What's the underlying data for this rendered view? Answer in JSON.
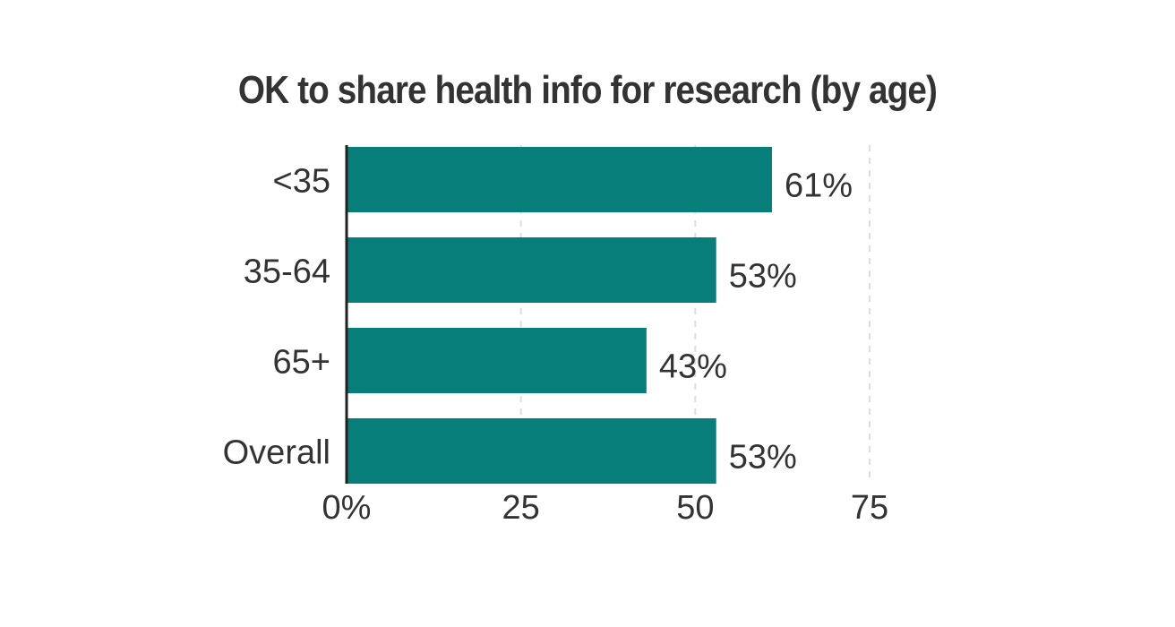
{
  "chart_data": {
    "type": "bar",
    "orientation": "horizontal",
    "title": "OK to share health info for research (by age)",
    "categories": [
      "<35",
      "35-64",
      "65+",
      "Overall"
    ],
    "values": [
      61,
      53,
      43,
      53
    ],
    "value_labels": [
      "61%",
      "53%",
      "43%",
      "53%"
    ],
    "xlim": [
      0,
      75
    ],
    "xticks": [
      0,
      25,
      50,
      75
    ],
    "xtick_labels": [
      "0%",
      "25",
      "50",
      "75"
    ],
    "xlabel": "",
    "ylabel": "",
    "grid": "vertical-dashed",
    "legend": "none",
    "colors": {
      "bar": "#087E7A",
      "text": "#333333",
      "axis": "#222222",
      "grid": "#dddddd"
    }
  }
}
